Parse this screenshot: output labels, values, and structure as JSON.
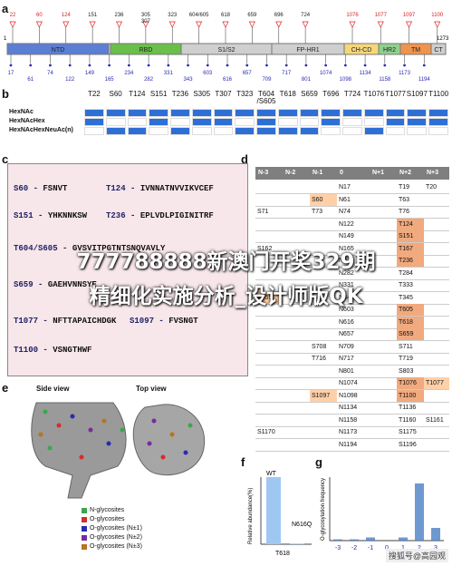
{
  "panels": {
    "a": "a",
    "b": "b",
    "c": "c",
    "d": "d",
    "e": "e",
    "f": "f",
    "g": "g"
  },
  "panel_a": {
    "domain_start": "1",
    "domain_end": "1273",
    "domains": [
      {
        "label": "NTD",
        "color": "#5b7fd4"
      },
      {
        "label": "RBD",
        "color": "#6abf4b"
      },
      {
        "label": "S1/S2",
        "color": "#cfcfcf"
      },
      {
        "label": "FP-HR1",
        "color": "#cfcfcf"
      },
      {
        "label": "CH-CD",
        "color": "#f5d77a"
      },
      {
        "label": "HR2",
        "color": "#8fd08f"
      },
      {
        "label": "TM",
        "color": "#f0944d"
      },
      {
        "label": "CT",
        "color": "#cfcfcf"
      }
    ],
    "top_sites": [
      "22",
      "60",
      "124",
      "151",
      "236",
      "305\n307",
      "323",
      "604/605",
      "618",
      "659",
      "696",
      "724",
      "1076",
      "1077",
      "1097",
      "1100"
    ],
    "bottom_sites": [
      "17",
      "61",
      "74",
      "122",
      "149",
      "165",
      "234",
      "282",
      "331",
      "343",
      "603",
      "616",
      "657",
      "709",
      "717",
      "801",
      "1074",
      "1098",
      "1134",
      "1158",
      "1173",
      "1194"
    ]
  },
  "panel_b": {
    "columns": [
      "T22",
      "S60",
      "T124",
      "S151",
      "T236",
      "S305",
      "T307",
      "T323",
      "T604\n/S605",
      "T618",
      "S659",
      "T696",
      "T724",
      "T1076",
      "T1077",
      "S1097",
      "T1100"
    ],
    "rows": [
      "HexNAc",
      "HexNAcHex",
      "HexNAcHexNeuAc(n)"
    ],
    "filled": [
      [
        1,
        1,
        1,
        1,
        1,
        1,
        1,
        1,
        1,
        1,
        1,
        1,
        1,
        1,
        1,
        1,
        1
      ],
      [
        1,
        0,
        0,
        1,
        0,
        1,
        1,
        0,
        1,
        0,
        0,
        1,
        0,
        0,
        1,
        1,
        1
      ],
      [
        0,
        1,
        1,
        0,
        1,
        0,
        0,
        1,
        1,
        1,
        1,
        0,
        0,
        1,
        0,
        0,
        0
      ]
    ]
  },
  "panel_c": {
    "sequences": [
      {
        "label": "S60 -",
        "seq": "FSNVT"
      },
      {
        "label": "T124 -",
        "seq": "IVNNATNVVIKVCEF"
      },
      {
        "label": "S151 -",
        "seq": "YHKNNKSW"
      },
      {
        "label": "T236 -",
        "seq": "EPLVDLPIGINITRF"
      },
      {
        "label": "T604/S605 -",
        "seq": "GVSVITPGTNTSNQVAVLY"
      },
      {
        "label": "S659 -",
        "seq": "GAEHVNNSYE"
      },
      {
        "label": "T1077 -",
        "seq": "NFTTAPAICHDGK"
      },
      {
        "label": "S1097 -",
        "seq": "FVSNGT"
      },
      {
        "label": "T1100 -",
        "seq": "VSNGTHWF"
      }
    ]
  },
  "panel_d": {
    "headers": [
      "N-3",
      "N-2",
      "N-1",
      "0",
      "N+1",
      "N+2",
      "N+3"
    ],
    "rows": [
      [
        "",
        "",
        "",
        "N17",
        "",
        "T19",
        "T20"
      ],
      [
        "",
        "",
        "S60",
        "N61",
        "",
        "T63",
        ""
      ],
      [
        "S71",
        "",
        "T73",
        "N74",
        "",
        "T76",
        ""
      ],
      [
        "",
        "",
        "",
        "N122",
        "",
        "T124",
        ""
      ],
      [
        "",
        "",
        "",
        "N149",
        "",
        "S151",
        ""
      ],
      [
        "S162",
        "",
        "",
        "N165",
        "",
        "T167",
        ""
      ],
      [
        "",
        "",
        "",
        "N234",
        "",
        "T236",
        ""
      ],
      [
        "",
        "",
        "",
        "N282",
        "",
        "T284",
        ""
      ],
      [
        "",
        "",
        "",
        "N331",
        "",
        "T333",
        ""
      ],
      [
        "S659",
        "",
        "",
        "N343",
        "",
        "T345",
        ""
      ],
      [
        "",
        "",
        "",
        "N603",
        "",
        "T605",
        ""
      ],
      [
        "",
        "",
        "",
        "N616",
        "",
        "T618",
        ""
      ],
      [
        "",
        "",
        "",
        "N657",
        "",
        "S659",
        ""
      ],
      [
        "",
        "",
        "S708",
        "N709",
        "",
        "S711",
        ""
      ],
      [
        "",
        "",
        "T716",
        "N717",
        "",
        "T719",
        ""
      ],
      [
        "",
        "",
        "",
        "N801",
        "",
        "S803",
        ""
      ],
      [
        "",
        "",
        "",
        "N1074",
        "",
        "T1076",
        "T1077"
      ],
      [
        "",
        "",
        "S1097",
        "N1098",
        "",
        "T1100",
        ""
      ],
      [
        "",
        "",
        "",
        "N1134",
        "",
        "T1136",
        ""
      ],
      [
        "",
        "",
        "",
        "N1158",
        "",
        "T1160",
        "S1161"
      ],
      [
        "S1170",
        "",
        "",
        "N1173",
        "",
        "S1175",
        ""
      ],
      [
        "",
        "",
        "",
        "N1194",
        "",
        "S1196",
        ""
      ]
    ]
  },
  "panel_e": {
    "side_title": "Side view",
    "top_title": "Top view",
    "legend": [
      {
        "label": "N-glycosites",
        "color": "#3aa84a"
      },
      {
        "label": "O-glycosites",
        "color": "#d62d2d"
      },
      {
        "label": "O-glycosites (N±1)",
        "color": "#2a2ab4"
      },
      {
        "label": "O-glycosites (N±2)",
        "color": "#7a2a9e"
      },
      {
        "label": "O-glycosites (N±3)",
        "color": "#b8741e"
      }
    ]
  },
  "chart_data": [
    {
      "type": "bar",
      "categories": [
        "WT",
        "N616Q"
      ],
      "values": [
        100,
        1
      ],
      "ylabel": "Relative abundance(%)",
      "xlabel": "T618",
      "ylim": [
        0,
        100
      ]
    },
    {
      "type": "bar",
      "ylabel": "O-glycosylation frequency",
      "x_ticks": [
        "-3",
        "-2",
        "-1",
        "0",
        "1",
        "2",
        "3"
      ],
      "x": [
        -3,
        -2,
        -1,
        0,
        1,
        2,
        3
      ],
      "values": [
        0.02,
        0.02,
        0.05,
        0.0,
        0.05,
        0.9,
        0.2
      ]
    }
  ],
  "watermark": {
    "line1": "777788888新澳门开奖329期",
    "line2": "精细化实施分析_设计师版QK",
    "corner": "搜狐号@高园观"
  }
}
